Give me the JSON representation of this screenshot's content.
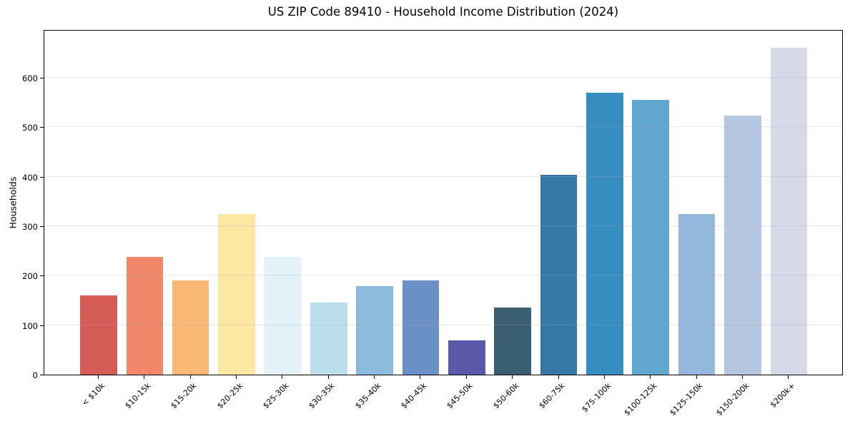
{
  "title": "US ZIP Code 89410 - Household Income Distribution (2024)",
  "chart_data": {
    "type": "bar",
    "title": "US ZIP Code 89410 - Household Income Distribution (2024)",
    "xlabel": "",
    "ylabel": "Households",
    "categories": [
      "< $10k",
      "$10-15k",
      "$15-20k",
      "$20-25k",
      "$25-30k",
      "$30-35k",
      "$35-40k",
      "$40-45k",
      "$45-50k",
      "$50-60k",
      "$60-75k",
      "$75-100k",
      "$100-125k",
      "$125-150k",
      "$150-200k",
      "$200k+"
    ],
    "values": [
      160,
      238,
      191,
      325,
      238,
      145,
      179,
      190,
      69,
      135,
      404,
      570,
      555,
      325,
      523,
      660
    ],
    "bar_colors": [
      "#d65c57",
      "#f1886a",
      "#fab876",
      "#fce8a2",
      "#e3f2f8",
      "#badeeb",
      "#8cbbdb",
      "#6b90c6",
      "#5a58a8",
      "#3a5f70",
      "#3779a6",
      "#388dc0",
      "#60a6ce",
      "#93b8db",
      "#b5c7e0",
      "#d8d9e8"
    ],
    "yticks": [
      0,
      100,
      200,
      300,
      400,
      500,
      600
    ],
    "ylim": [
      0,
      698
    ],
    "grid": "horizontal-only",
    "legend": "none",
    "axis_color": "#000000",
    "gridline_color": "#ebebf1",
    "background_color": "#ffffff",
    "x_tick_label_rotation_deg": 45
  }
}
